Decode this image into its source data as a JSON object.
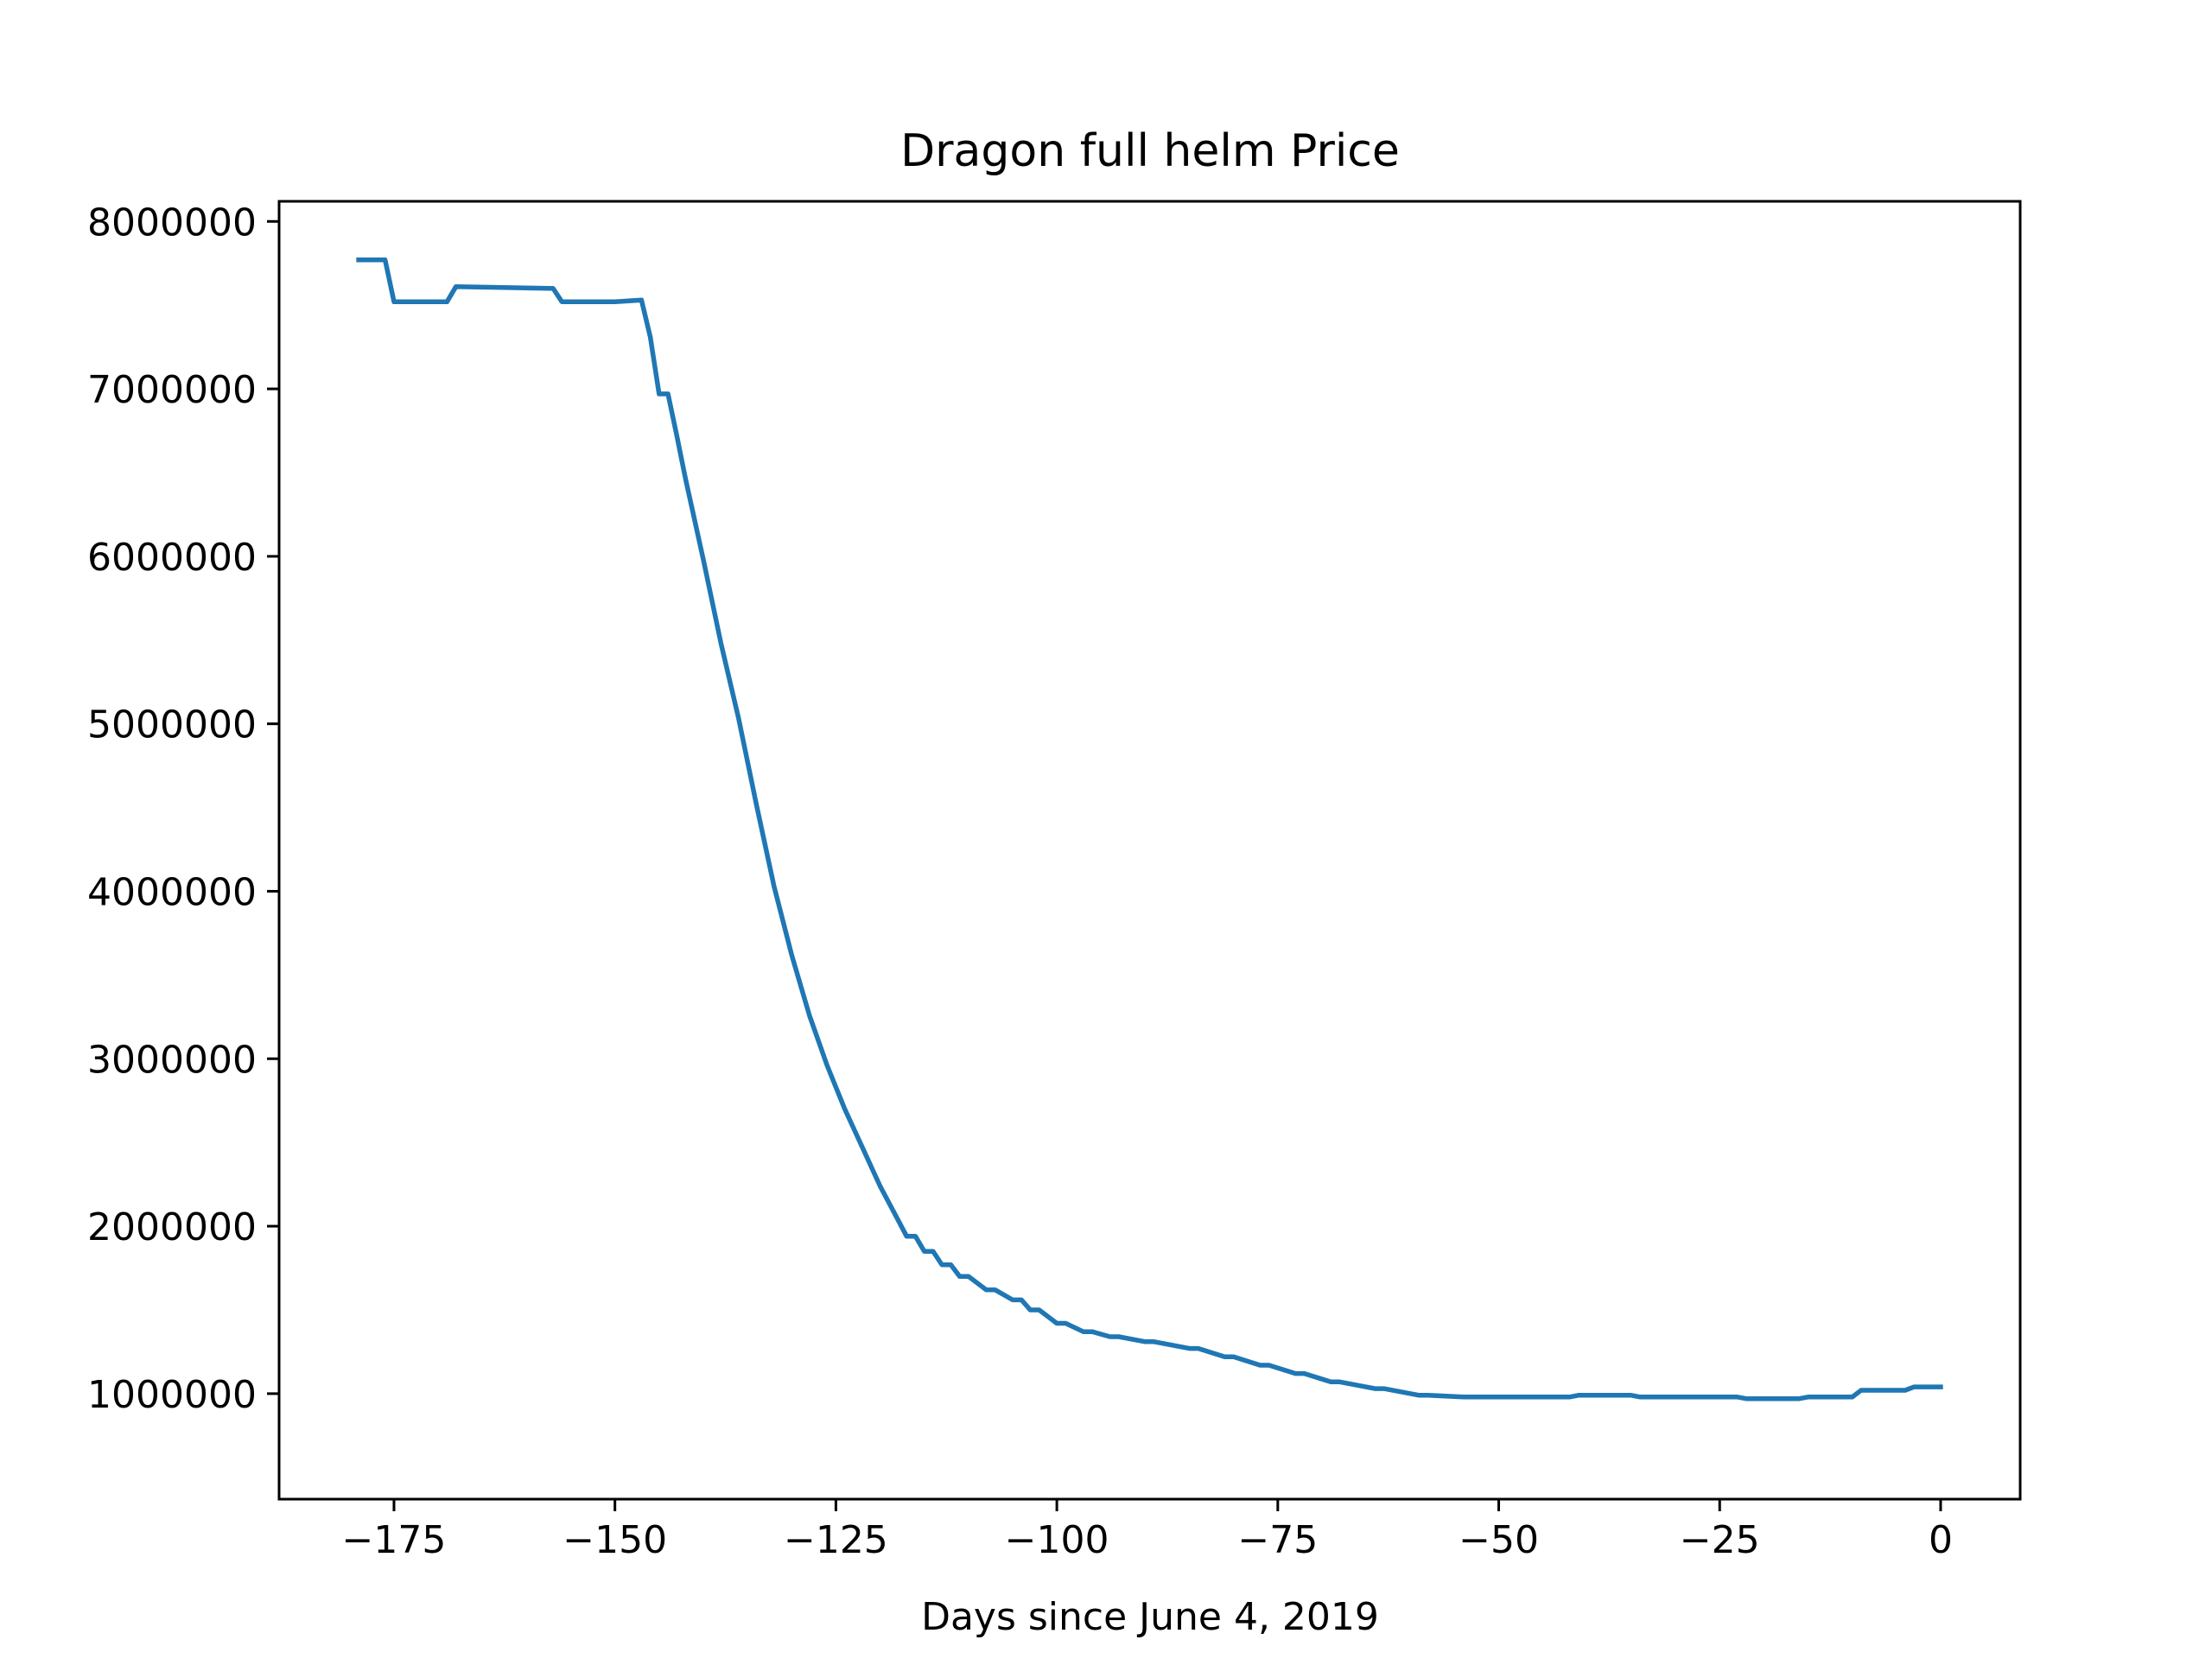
{
  "chart_data": {
    "type": "line",
    "title": "Dragon full helm Price",
    "xlabel": "Days since June 4, 2019",
    "ylabel": "",
    "xlim": [
      -188,
      9
    ],
    "ylim": [
      370000,
      8120000
    ],
    "xticks": [
      -175,
      -150,
      -125,
      -100,
      -75,
      -50,
      -25,
      0
    ],
    "xtick_labels": [
      "−175",
      "−150",
      "−125",
      "−100",
      "−75",
      "−50",
      "−25",
      "0"
    ],
    "yticks": [
      1000000,
      2000000,
      3000000,
      4000000,
      5000000,
      6000000,
      7000000,
      8000000
    ],
    "ytick_labels": [
      "1000000",
      "2000000",
      "3000000",
      "4000000",
      "5000000",
      "6000000",
      "7000000",
      "8000000"
    ],
    "grid": false,
    "legend": "none",
    "series": [
      {
        "color": "#1f77b4",
        "x": [
          -179,
          -176,
          -175,
          -169,
          -168,
          -157,
          -156,
          -150,
          -147,
          -146,
          -145,
          -144,
          -143,
          -142,
          -140,
          -138,
          -136,
          -134,
          -132,
          -130,
          -128,
          -126,
          -124,
          -122,
          -120,
          -118,
          -117,
          -116,
          -115,
          -114,
          -113,
          -112,
          -111,
          -110,
          -108,
          -107,
          -105,
          -104,
          -103,
          -102,
          -100,
          -99,
          -97,
          -96,
          -94,
          -93,
          -90,
          -89,
          -85,
          -84,
          -81,
          -80,
          -77,
          -76,
          -73,
          -72,
          -69,
          -68,
          -64,
          -63,
          -59,
          -58,
          -54,
          -53,
          -50,
          -48,
          -42,
          -41,
          -35,
          -34,
          -30,
          -29,
          -23,
          -22,
          -16,
          -15,
          -10,
          -9,
          -4,
          -3,
          0
        ],
        "y": [
          7770000,
          7770000,
          7520000,
          7520000,
          7610000,
          7600000,
          7520000,
          7520000,
          7530000,
          7310000,
          6970000,
          6970000,
          6720000,
          6460000,
          5980000,
          5480000,
          5030000,
          4520000,
          4030000,
          3620000,
          3260000,
          2960000,
          2700000,
          2470000,
          2240000,
          2040000,
          1940000,
          1940000,
          1850000,
          1850000,
          1770000,
          1770000,
          1700000,
          1700000,
          1620000,
          1620000,
          1560000,
          1560000,
          1500000,
          1500000,
          1420000,
          1420000,
          1370000,
          1370000,
          1340000,
          1340000,
          1310000,
          1310000,
          1270000,
          1270000,
          1220000,
          1220000,
          1170000,
          1170000,
          1120000,
          1120000,
          1070000,
          1070000,
          1030000,
          1030000,
          990000,
          990000,
          980000,
          980000,
          980000,
          980000,
          980000,
          990000,
          990000,
          980000,
          980000,
          980000,
          980000,
          970000,
          970000,
          980000,
          980000,
          1020000,
          1020000,
          1040000,
          1040000
        ]
      }
    ]
  }
}
